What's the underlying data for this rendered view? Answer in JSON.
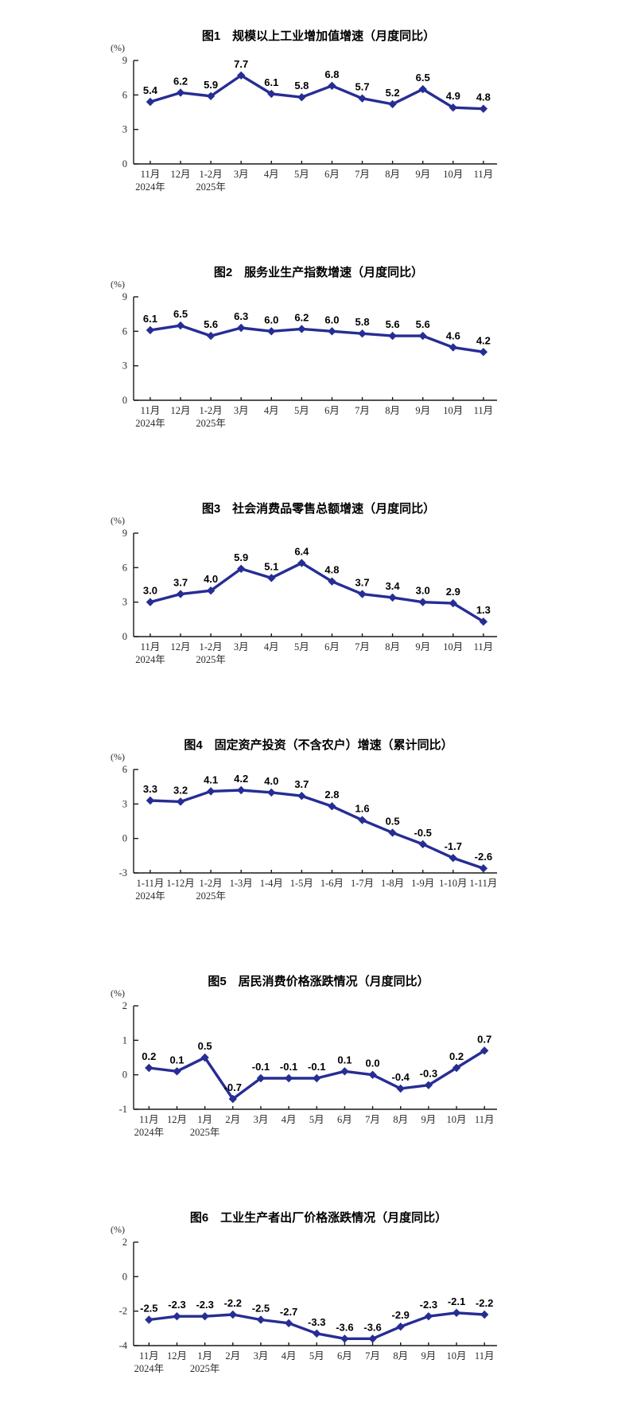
{
  "page_background": "#ffffff",
  "colors": {
    "axis": "#1a1a1a",
    "tick_label": "#2b2b2b",
    "data_label": "#000000"
  },
  "chart_data": [
    {
      "type": "line",
      "title": "图1　规模以上工业增加值增速（月度同比）",
      "unit_label": "(%)",
      "categories": [
        "11月",
        "12月",
        "1-2月",
        "3月",
        "4月",
        "5月",
        "6月",
        "7月",
        "8月",
        "9月",
        "10月",
        "11月"
      ],
      "year_labels": [
        {
          "index": 0,
          "label": "2024年"
        },
        {
          "index": 2,
          "label": "2025年"
        }
      ],
      "values": [
        5.4,
        6.2,
        5.9,
        7.7,
        6.1,
        5.8,
        6.8,
        5.7,
        5.2,
        6.5,
        4.9,
        4.8
      ],
      "ylim": [
        0,
        9
      ],
      "yticks": [
        0,
        3,
        6,
        9
      ],
      "grid": false,
      "legend": "none",
      "line_color": "#262d94"
    },
    {
      "type": "line",
      "title": "图2　服务业生产指数增速（月度同比）",
      "unit_label": "(%)",
      "categories": [
        "11月",
        "12月",
        "1-2月",
        "3月",
        "4月",
        "5月",
        "6月",
        "7月",
        "8月",
        "9月",
        "10月",
        "11月"
      ],
      "year_labels": [
        {
          "index": 0,
          "label": "2024年"
        },
        {
          "index": 2,
          "label": "2025年"
        }
      ],
      "values": [
        6.1,
        6.5,
        5.6,
        6.3,
        6.0,
        6.2,
        6.0,
        5.8,
        5.6,
        5.6,
        4.6,
        4.2
      ],
      "ylim": [
        0,
        9
      ],
      "yticks": [
        0,
        3,
        6,
        9
      ],
      "grid": false,
      "legend": "none",
      "line_color": "#262d94"
    },
    {
      "type": "line",
      "title": "图3　社会消费品零售总额增速（月度同比）",
      "unit_label": "(%)",
      "categories": [
        "11月",
        "12月",
        "1-2月",
        "3月",
        "4月",
        "5月",
        "6月",
        "7月",
        "8月",
        "9月",
        "10月",
        "11月"
      ],
      "year_labels": [
        {
          "index": 0,
          "label": "2024年"
        },
        {
          "index": 2,
          "label": "2025年"
        }
      ],
      "values": [
        3.0,
        3.7,
        4.0,
        5.9,
        5.1,
        6.4,
        4.8,
        3.7,
        3.4,
        3.0,
        2.9,
        1.3
      ],
      "ylim": [
        0,
        9
      ],
      "yticks": [
        0,
        3,
        6,
        9
      ],
      "grid": false,
      "legend": "none",
      "line_color": "#262d94"
    },
    {
      "type": "line",
      "title": "图4　固定资产投资（不含农户）增速（累计同比）",
      "unit_label": "(%)",
      "categories": [
        "1-11月",
        "1-12月",
        "1-2月",
        "1-3月",
        "1-4月",
        "1-5月",
        "1-6月",
        "1-7月",
        "1-8月",
        "1-9月",
        "1-10月",
        "1-11月"
      ],
      "year_labels": [
        {
          "index": 0,
          "label": "2024年"
        },
        {
          "index": 2,
          "label": "2025年"
        }
      ],
      "values": [
        3.3,
        3.2,
        4.1,
        4.2,
        4.0,
        3.7,
        2.8,
        1.6,
        0.5,
        -0.5,
        -1.7,
        -2.6
      ],
      "ylim": [
        -3,
        6
      ],
      "yticks": [
        -3,
        0,
        3,
        6
      ],
      "grid": false,
      "legend": "none",
      "line_color": "#262d94"
    },
    {
      "type": "line",
      "title": "图5　居民消费价格涨跌情况（月度同比）",
      "unit_label": "(%)",
      "categories": [
        "11月",
        "12月",
        "1月",
        "2月",
        "3月",
        "4月",
        "5月",
        "6月",
        "7月",
        "8月",
        "9月",
        "10月",
        "11月"
      ],
      "year_labels": [
        {
          "index": 0,
          "label": "2024年"
        },
        {
          "index": 2,
          "label": "2025年"
        }
      ],
      "values": [
        0.2,
        0.1,
        0.5,
        -0.7,
        -0.1,
        -0.1,
        -0.1,
        0.1,
        0.0,
        -0.4,
        -0.3,
        0.2,
        0.7
      ],
      "ylim": [
        -1,
        2
      ],
      "yticks": [
        -1,
        0,
        1,
        2
      ],
      "grid": false,
      "legend": "none",
      "line_color": "#262d94"
    },
    {
      "type": "line",
      "title": "图6　工业生产者出厂价格涨跌情况（月度同比）",
      "unit_label": "(%)",
      "categories": [
        "11月",
        "12月",
        "1月",
        "2月",
        "3月",
        "4月",
        "5月",
        "6月",
        "7月",
        "8月",
        "9月",
        "10月",
        "11月"
      ],
      "year_labels": [
        {
          "index": 0,
          "label": "2024年"
        },
        {
          "index": 2,
          "label": "2025年"
        }
      ],
      "values": [
        -2.5,
        -2.3,
        -2.3,
        -2.2,
        -2.5,
        -2.7,
        -3.3,
        -3.6,
        -3.6,
        -2.9,
        -2.3,
        -2.1,
        -2.2
      ],
      "ylim": [
        -4,
        2
      ],
      "yticks": [
        -4,
        -2,
        0,
        2
      ],
      "grid": false,
      "legend": "none",
      "line_color": "#262d94"
    }
  ]
}
